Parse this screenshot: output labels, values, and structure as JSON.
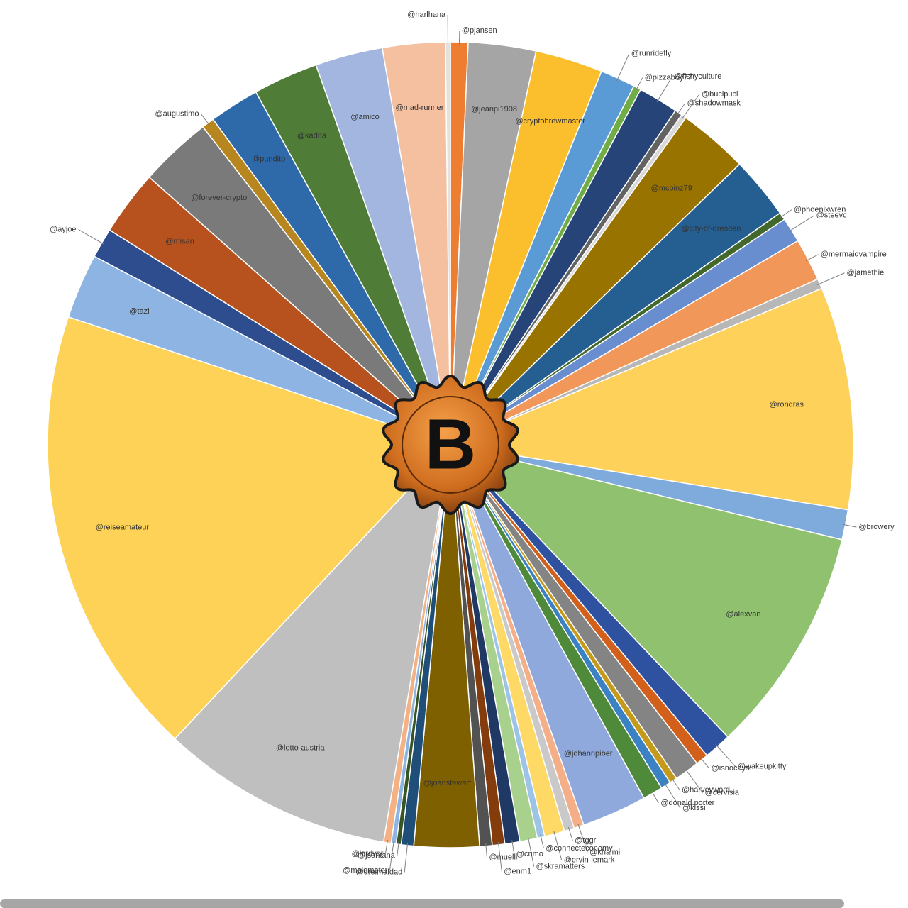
{
  "chart_data": {
    "type": "pie",
    "logo": "B",
    "categories": [
      "@pjansen",
      "@jeanpi1908",
      "@cryptobrewmaster",
      "@runridefly",
      "@pizzaboy77",
      "@fishyculture",
      "@shadowmask",
      "@bucipuci",
      "@mcoinz79",
      "@city-of-dresden",
      "@phoenixwren",
      "@steevc",
      "@mermaidvampire",
      "@jamethiel",
      "@rondras",
      "@browery",
      "@alexvan",
      "@wakeupkitty",
      "@isnochys",
      "@cervisia",
      "@harveyword",
      "@kissi",
      "@donald.porter",
      "@johannpiber",
      "@khaimi",
      "@tggr",
      "@ervin-lemark",
      "@connecteconomy",
      "@skramatters",
      "@crimo",
      "@enm1",
      "@muelli",
      "@joanstewart",
      "@dreimaldad",
      "@jsantana",
      "@molometer",
      "@lordvdr",
      "@lotto-austria",
      "@reiseamateur",
      "@tazi",
      "@ayjoe",
      "@misan",
      "@forever-crypto",
      "@augustimo",
      "@pundito",
      "@kadna",
      "@amico",
      "@mad-runner",
      "@harlhana"
    ],
    "values": [
      0.7,
      2.7,
      2.7,
      1.4,
      0.3,
      1.6,
      0.3,
      0.2,
      2.8,
      2.5,
      0.3,
      1.0,
      1.7,
      0.4,
      8.9,
      1.2,
      9.1,
      1.1,
      0.5,
      1.0,
      0.3,
      0.4,
      0.8,
      2.6,
      0.4,
      0.4,
      0.8,
      0.3,
      0.7,
      0.6,
      0.5,
      0.5,
      2.6,
      0.5,
      0.2,
      0.2,
      0.3,
      9.3,
      18.1,
      2.6,
      1.2,
      2.6,
      2.9,
      0.5,
      2.0,
      2.6,
      2.7,
      2.5,
      0.2
    ],
    "colors": [
      "#ed7d31",
      "#a5a5a5",
      "#fbbf2e",
      "#5b9bd5",
      "#70ad47",
      "#264478",
      "#636363",
      "#d9d9d9",
      "#997300",
      "#255e91",
      "#43682b",
      "#698ed0",
      "#f1975a",
      "#b7b7b7",
      "#fdd15a",
      "#7eabdc",
      "#8fc16e",
      "#2f52a0",
      "#d2601b",
      "#848484",
      "#c59a1b",
      "#3a82c4",
      "#4f8a3a",
      "#8fa9dc",
      "#f4ae88",
      "#c9c9c9",
      "#ffd966",
      "#9dc3e6",
      "#a9d18e",
      "#203864",
      "#843c0c",
      "#525252",
      "#7f6000",
      "#1f4e79",
      "#375623",
      "#8eb4e3",
      "#f4b183",
      "#bfbfbf",
      "#fdd256",
      "#8db4e2",
      "#2e4d8f",
      "#b7521f",
      "#7a7a7a",
      "#b8861e",
      "#2e69aa",
      "#4f7d37",
      "#a3b6e0",
      "#f4c09f",
      "#e2e2e2"
    ]
  }
}
